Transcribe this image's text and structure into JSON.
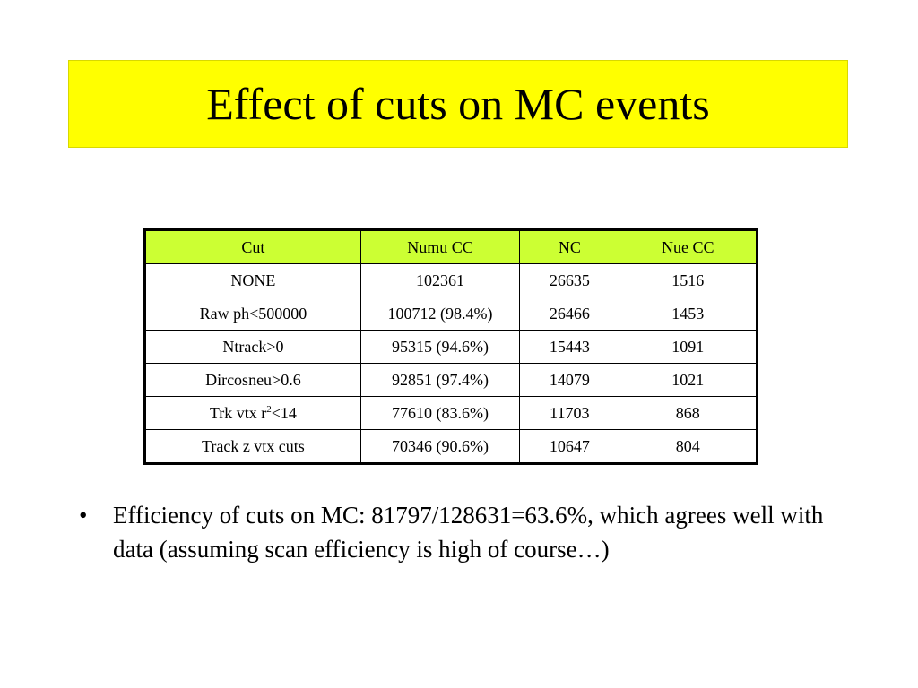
{
  "title": "Effect of cuts on MC events",
  "table": {
    "headers": [
      "Cut",
      "Numu CC",
      "NC",
      "Nue CC"
    ],
    "rows": [
      {
        "cut": "NONE",
        "cut_sup": "",
        "cut_suffix": "",
        "numu": "102361",
        "nc": "26635",
        "nue": "1516"
      },
      {
        "cut": "Raw ph<500000",
        "cut_sup": "",
        "cut_suffix": "",
        "numu": "100712 (98.4%)",
        "nc": "26466",
        "nue": "1453"
      },
      {
        "cut": "Ntrack>0",
        "cut_sup": "",
        "cut_suffix": "",
        "numu": "95315 (94.6%)",
        "nc": "15443",
        "nue": "1091"
      },
      {
        "cut": "Dircosneu>0.6",
        "cut_sup": "",
        "cut_suffix": "",
        "numu": "92851 (97.4%)",
        "nc": "14079",
        "nue": "1021"
      },
      {
        "cut": "Trk vtx r",
        "cut_sup": "2",
        "cut_suffix": "<14",
        "numu": "77610 (83.6%)",
        "nc": "11703",
        "nue": "868"
      },
      {
        "cut": "Track z vtx cuts",
        "cut_sup": "",
        "cut_suffix": "",
        "numu": "70346 (90.6%)",
        "nc": "10647",
        "nue": "804"
      }
    ]
  },
  "bullet": {
    "marker": "•",
    "text": "Efficiency of cuts on MC: 81797/128631=63.6%, which agrees well with data (assuming scan efficiency is high of course…)"
  },
  "colors": {
    "title_background": "#ffff00",
    "header_background": "#ccff33"
  }
}
